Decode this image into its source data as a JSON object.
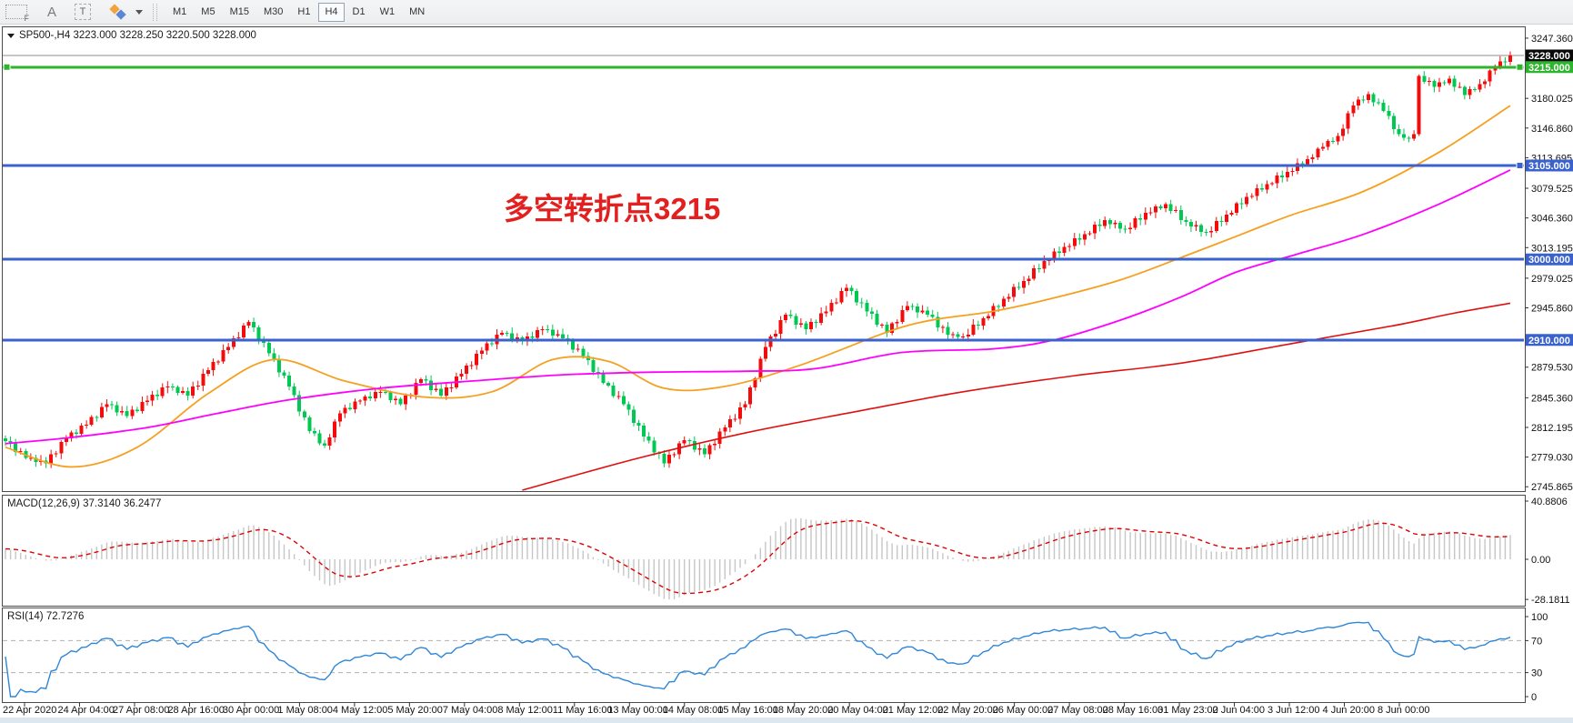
{
  "toolbar": {
    "tool_icons": [
      {
        "id": "template-frame",
        "label": "F"
      },
      {
        "id": "text-label",
        "label": "A"
      },
      {
        "id": "text-box",
        "label": "T"
      },
      {
        "id": "shapes",
        "label": ""
      }
    ],
    "timeframes": [
      "M1",
      "M5",
      "M15",
      "M30",
      "H1",
      "H4",
      "D1",
      "W1",
      "MN"
    ],
    "active_timeframe": "H4"
  },
  "chart": {
    "title_line": "SP500-,H4  3223.000 3228.250 3220.500 3228.000"
  },
  "annotation": {
    "text": "多空转折点3215",
    "color": "#e32020"
  },
  "price_axis": {
    "plain_ticks": [
      {
        "value": 3247.36,
        "label": "3247.360"
      },
      {
        "value": 3180.025,
        "label": "3180.025"
      },
      {
        "value": 3146.86,
        "label": "3146.860"
      },
      {
        "value": 3113.695,
        "label": "3113.695"
      },
      {
        "value": 3079.525,
        "label": "3079.525"
      },
      {
        "value": 3046.36,
        "label": "3046.360"
      },
      {
        "value": 3013.195,
        "label": "3013.195"
      },
      {
        "value": 2979.025,
        "label": "2979.025"
      },
      {
        "value": 2945.86,
        "label": "2945.860"
      },
      {
        "value": 2879.53,
        "label": "2879.530"
      },
      {
        "value": 2845.36,
        "label": "2845.360"
      },
      {
        "value": 2812.195,
        "label": "2812.195"
      },
      {
        "value": 2779.03,
        "label": "2779.030"
      },
      {
        "value": 2745.865,
        "label": "2745.865"
      }
    ],
    "tags": [
      {
        "value": 3228.0,
        "label": "3228.000",
        "bg": "#0a0a0a"
      },
      {
        "value": 3215.0,
        "label": "3215.000",
        "bg": "#2db52d"
      },
      {
        "value": 3105.0,
        "label": "3105.000",
        "bg": "#3a62cf"
      },
      {
        "value": 3000.0,
        "label": "3000.000",
        "bg": "#3a62cf"
      },
      {
        "value": 2910.0,
        "label": "2910.000",
        "bg": "#3a62cf"
      }
    ]
  },
  "time_axis": {
    "labels": [
      "22 Apr 2020",
      "24 Apr 04:00",
      "27 Apr 08:00",
      "28 Apr 16:00",
      "30 Apr 00:00",
      "1 May 08:00",
      "4 May 12:00",
      "5 May 20:00",
      "7 May 04:00",
      "8 May 12:00",
      "11 May 16:00",
      "13 May 00:00",
      "14 May 08:00",
      "15 May 16:00",
      "18 May 20:00",
      "20 May 04:00",
      "21 May 12:00",
      "22 May 20:00",
      "26 May 00:00",
      "27 May 08:00",
      "28 May 16:00",
      "31 May 23:00",
      "2 Jun 04:00",
      "3 Jun 12:00",
      "4 Jun 20:00",
      "8 Jun 00:00"
    ]
  },
  "panels": {
    "macd": {
      "title": "MACD(12,26,9) 37.3140 36.2477",
      "axis": [
        {
          "value": 40.8806,
          "label": "40.8806"
        },
        {
          "value": 0,
          "label": "0.00"
        },
        {
          "value": -28.1811,
          "label": "-28.1811"
        }
      ]
    },
    "rsi": {
      "title": "RSI(14) 72.7276",
      "axis": [
        {
          "value": 100,
          "label": "100"
        },
        {
          "value": 70,
          "label": "70"
        },
        {
          "value": 30,
          "label": "30"
        },
        {
          "value": 0,
          "label": "0"
        }
      ]
    }
  },
  "chart_data": {
    "type": "candlestick",
    "symbol": "SP500-",
    "timeframe": "H4",
    "bars": 298,
    "current_ohlc": {
      "open": 3223.0,
      "high": 3228.25,
      "low": 3220.5,
      "close": 3228.0
    },
    "last_price": 3228.0,
    "y_axis": {
      "top_price": 3259.5,
      "bottom_price": 2741.0
    },
    "candle_colors": {
      "bullish": "#f40b0b",
      "bearish": "#00c853"
    },
    "close_waypoints": [
      [
        0,
        2797
      ],
      [
        4,
        2778
      ],
      [
        8,
        2772
      ],
      [
        12,
        2800
      ],
      [
        16,
        2815
      ],
      [
        20,
        2838
      ],
      [
        24,
        2825
      ],
      [
        28,
        2842
      ],
      [
        32,
        2858
      ],
      [
        36,
        2848
      ],
      [
        40,
        2876
      ],
      [
        44,
        2902
      ],
      [
        48,
        2930
      ],
      [
        52,
        2895
      ],
      [
        56,
        2858
      ],
      [
        60,
        2808
      ],
      [
        63,
        2792
      ],
      [
        66,
        2828
      ],
      [
        70,
        2842
      ],
      [
        74,
        2852
      ],
      [
        78,
        2838
      ],
      [
        82,
        2866
      ],
      [
        86,
        2848
      ],
      [
        90,
        2872
      ],
      [
        94,
        2898
      ],
      [
        98,
        2918
      ],
      [
        102,
        2908
      ],
      [
        106,
        2922
      ],
      [
        110,
        2912
      ],
      [
        114,
        2892
      ],
      [
        118,
        2862
      ],
      [
        122,
        2838
      ],
      [
        126,
        2802
      ],
      [
        130,
        2772
      ],
      [
        134,
        2798
      ],
      [
        138,
        2782
      ],
      [
        142,
        2812
      ],
      [
        146,
        2838
      ],
      [
        150,
        2902
      ],
      [
        154,
        2938
      ],
      [
        158,
        2922
      ],
      [
        162,
        2942
      ],
      [
        166,
        2968
      ],
      [
        170,
        2942
      ],
      [
        174,
        2918
      ],
      [
        178,
        2948
      ],
      [
        182,
        2938
      ],
      [
        186,
        2916
      ],
      [
        189,
        2914
      ],
      [
        193,
        2934
      ],
      [
        197,
        2956
      ],
      [
        201,
        2976
      ],
      [
        205,
        2998
      ],
      [
        209,
        3014
      ],
      [
        213,
        3028
      ],
      [
        217,
        3044
      ],
      [
        221,
        3034
      ],
      [
        225,
        3052
      ],
      [
        229,
        3062
      ],
      [
        233,
        3042
      ],
      [
        237,
        3030
      ],
      [
        241,
        3050
      ],
      [
        245,
        3070
      ],
      [
        249,
        3084
      ],
      [
        253,
        3098
      ],
      [
        257,
        3112
      ],
      [
        260,
        3126
      ],
      [
        263,
        3138
      ],
      [
        266,
        3172
      ],
      [
        269,
        3185
      ],
      [
        272,
        3166
      ],
      [
        275,
        3140
      ],
      [
        277,
        3135
      ],
      [
        278,
        3140
      ],
      [
        279,
        3205
      ],
      [
        282,
        3193
      ],
      [
        285,
        3202
      ],
      [
        288,
        3184
      ],
      [
        291,
        3196
      ],
      [
        294,
        3214
      ],
      [
        297,
        3228
      ]
    ],
    "horizontal_lines": [
      {
        "price": 3228.0,
        "color": "#8c8c8c",
        "width": 1,
        "role": "last-price-line",
        "handles": []
      },
      {
        "price": 3215.0,
        "color": "#2db52d",
        "width": 3,
        "role": "pivot-line",
        "handles": [
          "left",
          "right"
        ]
      },
      {
        "price": 3105.0,
        "color": "#3a62cf",
        "width": 3,
        "role": "level-line",
        "handles": [
          "right"
        ]
      },
      {
        "price": 3000.0,
        "color": "#3a62cf",
        "width": 3,
        "role": "level-line",
        "handles": []
      },
      {
        "price": 2910.0,
        "color": "#3a62cf",
        "width": 3,
        "role": "level-line",
        "handles": []
      }
    ],
    "moving_averages": [
      {
        "name": "fast-ma",
        "color": "#f5a021",
        "width": 1.8,
        "points": [
          [
            0,
            2790
          ],
          [
            13,
            2768
          ],
          [
            26,
            2790
          ],
          [
            40,
            2850
          ],
          [
            53,
            2888
          ],
          [
            67,
            2864
          ],
          [
            83,
            2846
          ],
          [
            96,
            2852
          ],
          [
            108,
            2888
          ],
          [
            119,
            2886
          ],
          [
            130,
            2856
          ],
          [
            142,
            2858
          ],
          [
            157,
            2882
          ],
          [
            178,
            2926
          ],
          [
            195,
            2942
          ],
          [
            207,
            2957
          ],
          [
            220,
            2977
          ],
          [
            232,
            3002
          ],
          [
            243,
            3026
          ],
          [
            254,
            3050
          ],
          [
            268,
            3076
          ],
          [
            283,
            3120
          ],
          [
            297,
            3172
          ]
        ]
      },
      {
        "name": "mid-ma",
        "color": "#ff00ff",
        "width": 1.8,
        "points": [
          [
            0,
            2794
          ],
          [
            13,
            2801
          ],
          [
            28,
            2812
          ],
          [
            42,
            2828
          ],
          [
            56,
            2843
          ],
          [
            74,
            2856
          ],
          [
            92,
            2864
          ],
          [
            110,
            2871
          ],
          [
            128,
            2874
          ],
          [
            146,
            2875
          ],
          [
            160,
            2878
          ],
          [
            177,
            2896
          ],
          [
            195,
            2900
          ],
          [
            207,
            2910
          ],
          [
            220,
            2932
          ],
          [
            232,
            2958
          ],
          [
            243,
            2986
          ],
          [
            255,
            3006
          ],
          [
            268,
            3028
          ],
          [
            283,
            3062
          ],
          [
            297,
            3100
          ]
        ]
      },
      {
        "name": "slow-ma",
        "color": "#e01010",
        "width": 1.6,
        "points": [
          [
            102,
            2742
          ],
          [
            125,
            2778
          ],
          [
            146,
            2806
          ],
          [
            168,
            2830
          ],
          [
            189,
            2852
          ],
          [
            211,
            2870
          ],
          [
            232,
            2884
          ],
          [
            254,
            2906
          ],
          [
            274,
            2926
          ],
          [
            286,
            2940
          ],
          [
            297,
            2951
          ]
        ]
      }
    ],
    "macd": {
      "fast": 12,
      "slow": 26,
      "signal": 9,
      "value": 37.314,
      "signal_value": 36.2477,
      "axis_max": 40.8806,
      "axis_min": -28.1811,
      "histogram_color": "#c6c6c6",
      "signal_color": "#e00000"
    },
    "rsi": {
      "period": 14,
      "value": 72.7276,
      "color": "#2f86d8",
      "levels": [
        70,
        30
      ],
      "range": [
        0,
        100
      ],
      "level_color": "#b0b0b0"
    }
  }
}
